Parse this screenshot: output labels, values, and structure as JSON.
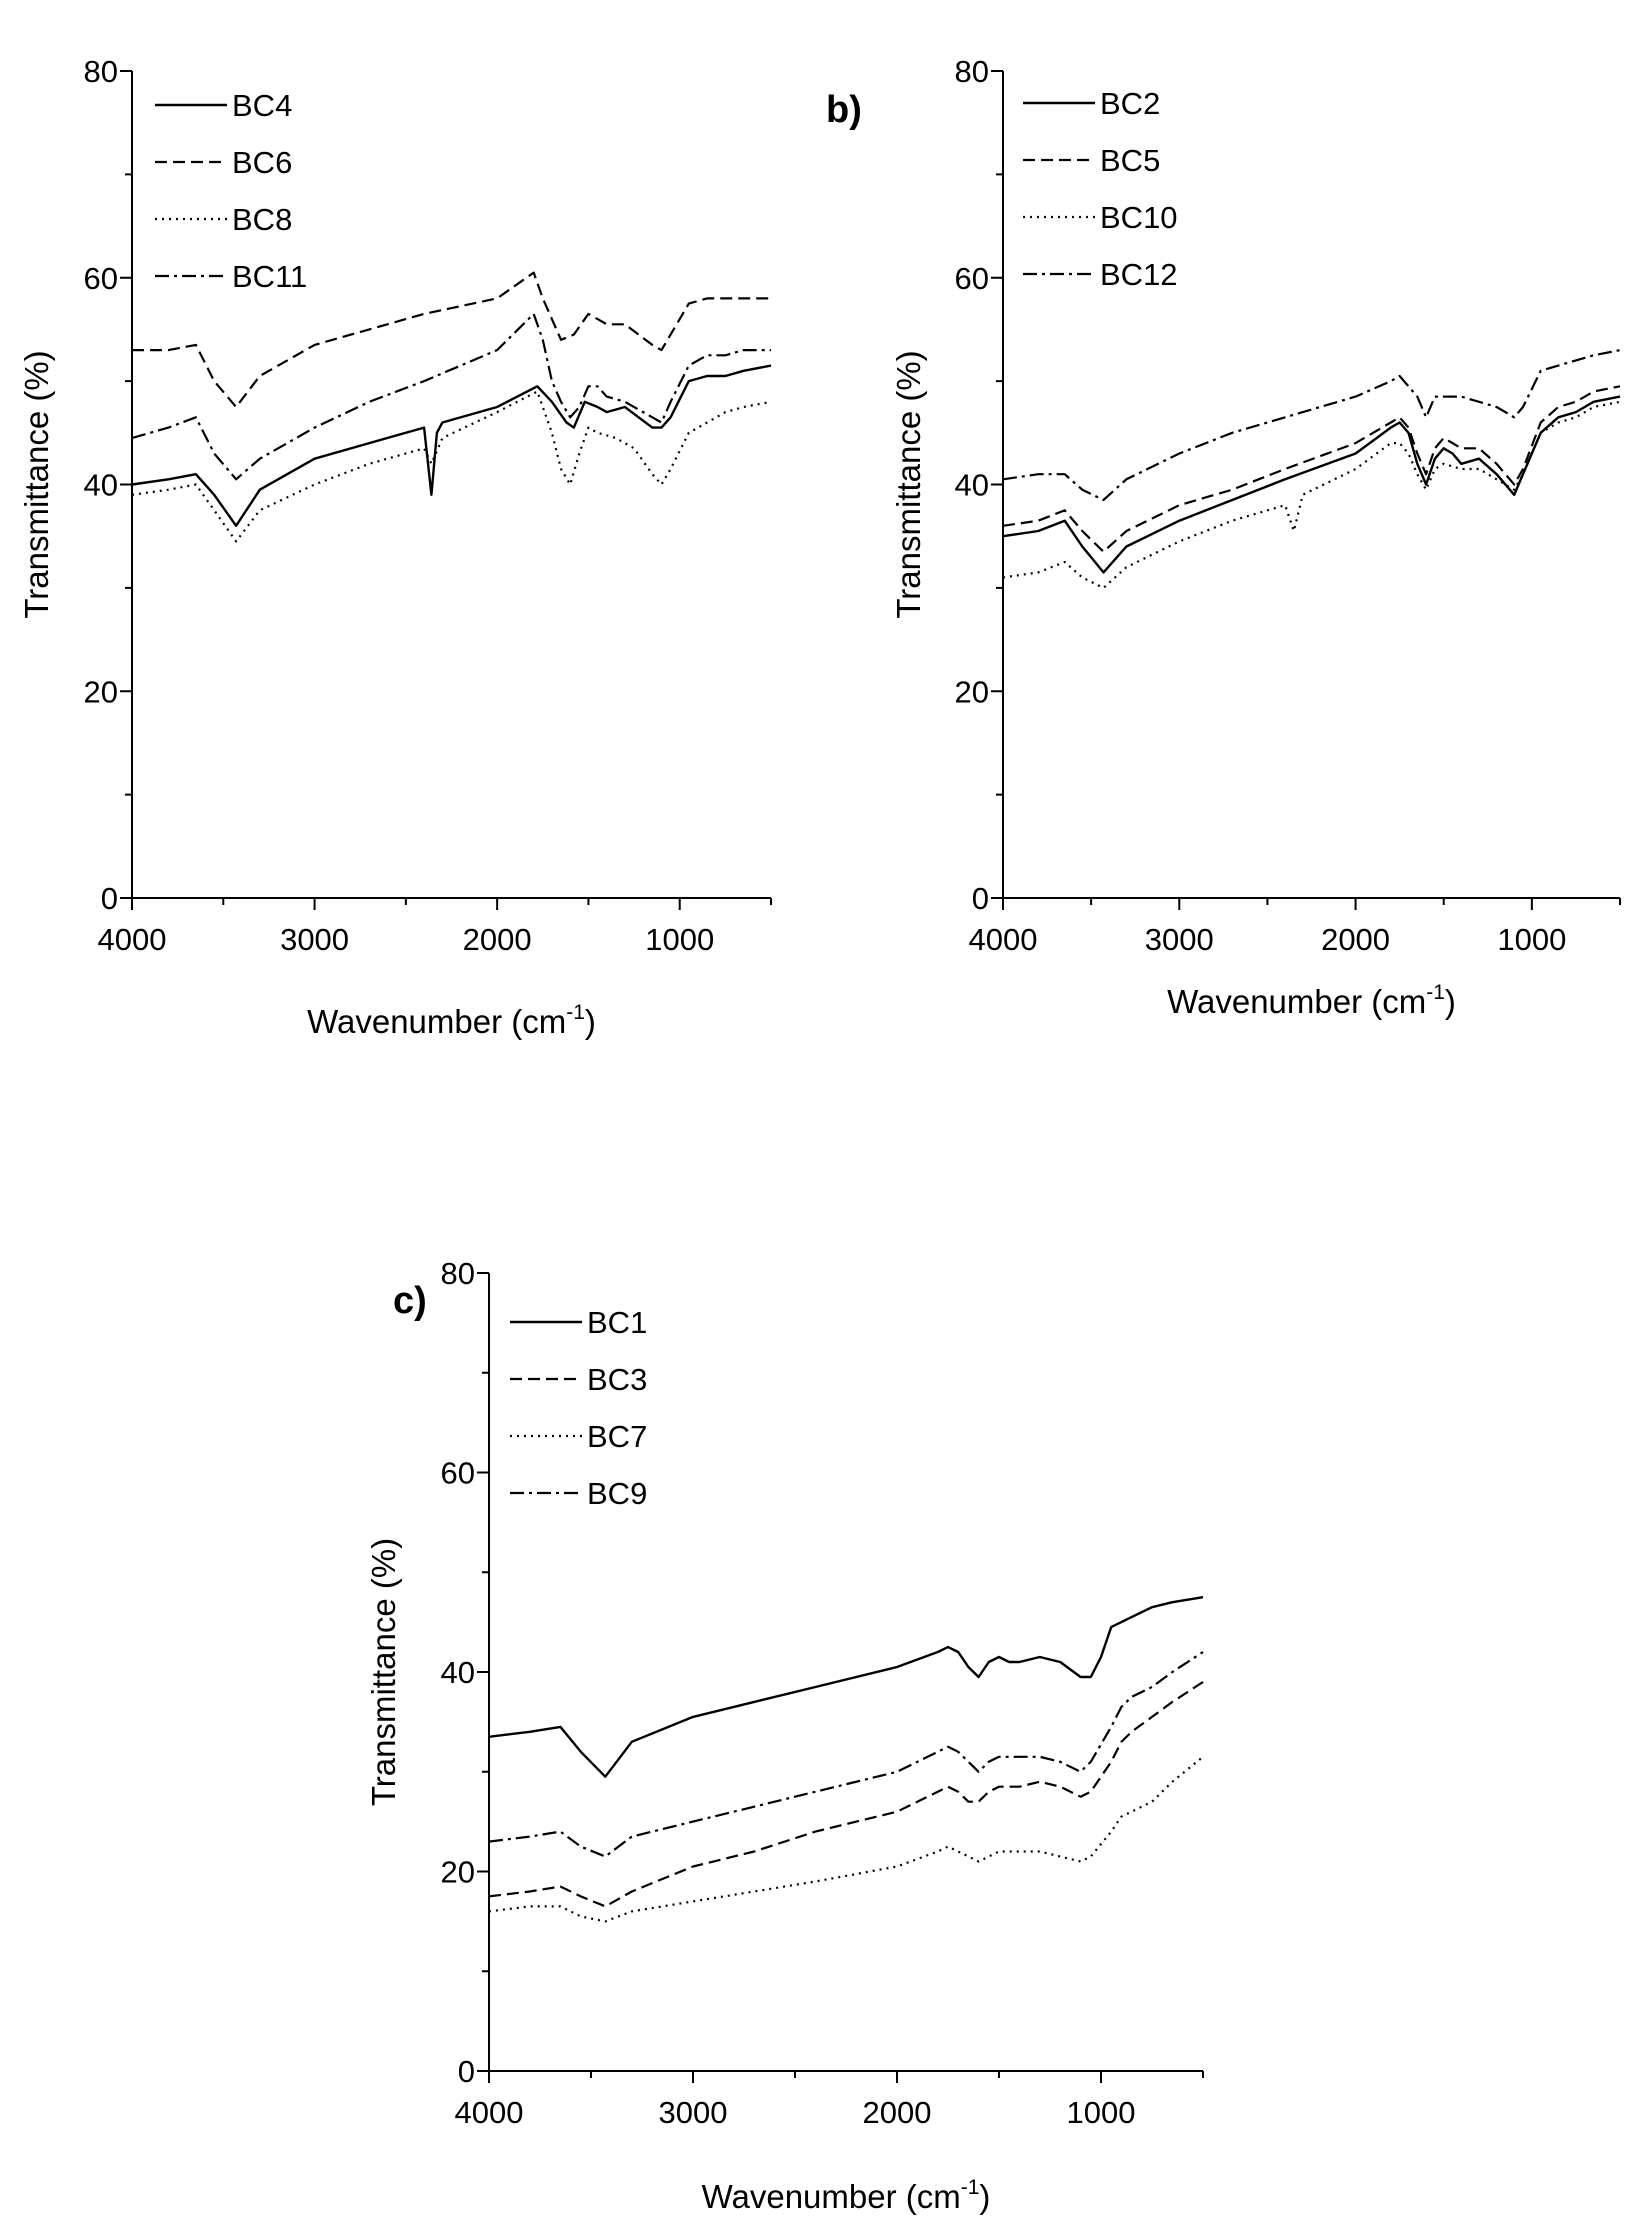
{
  "chart_data": [
    {
      "type": "line",
      "panel_label": "",
      "xlabel": "Wavenumber (cm",
      "xlabel_sup": "-1",
      "xlabel_end": ")",
      "ylabel": "Transmittance (%)",
      "xlim": [
        4000,
        500
      ],
      "ylim": [
        0,
        80
      ],
      "xticks": [
        "4000",
        "3000",
        "2000",
        "1000"
      ],
      "yticks": [
        "0",
        "20",
        "40",
        "60",
        "80"
      ],
      "legend_position": "top-left",
      "series": [
        {
          "name": "BC4",
          "style": "solid",
          "x": [
            4000,
            3800,
            3650,
            3550,
            3430,
            3300,
            3000,
            2700,
            2400,
            2360,
            2330,
            2300,
            2000,
            1780,
            1700,
            1620,
            1580,
            1520,
            1450,
            1400,
            1300,
            1150,
            1100,
            1050,
            950,
            850,
            800,
            750,
            650,
            500
          ],
          "y": [
            40,
            40.5,
            41,
            39,
            36,
            39.5,
            42.5,
            44,
            45.5,
            39,
            45,
            46,
            47.5,
            49.5,
            48,
            46,
            45.5,
            48,
            47.5,
            47,
            47.5,
            45.5,
            45.5,
            46.5,
            50,
            50.5,
            50.5,
            50.5,
            51,
            51.5
          ]
        },
        {
          "name": "BC6",
          "style": "dashed",
          "x": [
            4000,
            3800,
            3650,
            3550,
            3430,
            3300,
            3000,
            2700,
            2400,
            2000,
            1800,
            1750,
            1650,
            1580,
            1500,
            1450,
            1400,
            1300,
            1150,
            1100,
            1050,
            950,
            850,
            750,
            650,
            500
          ],
          "y": [
            53,
            53,
            53.5,
            50,
            47.5,
            50.5,
            53.5,
            55,
            56.5,
            58,
            60.5,
            58,
            54,
            54.5,
            56.5,
            56,
            55.5,
            55.5,
            53.5,
            53,
            54.5,
            57.5,
            58,
            58,
            58,
            58
          ]
        },
        {
          "name": "BC8",
          "style": "dotted",
          "x": [
            4000,
            3800,
            3650,
            3550,
            3430,
            3300,
            3000,
            2700,
            2400,
            2360,
            2300,
            2000,
            1780,
            1700,
            1650,
            1600,
            1550,
            1500,
            1450,
            1350,
            1250,
            1150,
            1100,
            1050,
            950,
            850,
            750,
            650,
            500
          ],
          "y": [
            39,
            39.5,
            40,
            37.5,
            34.5,
            37.5,
            40,
            42,
            43.5,
            42,
            44.5,
            47,
            49,
            45,
            41.5,
            40,
            43,
            45.5,
            45,
            44.5,
            43.5,
            41,
            40,
            41.5,
            45,
            46,
            47,
            47.5,
            48
          ]
        },
        {
          "name": "BC11",
          "style": "dashdot",
          "x": [
            4000,
            3800,
            3650,
            3550,
            3430,
            3300,
            3000,
            2700,
            2400,
            2000,
            1800,
            1750,
            1700,
            1650,
            1600,
            1550,
            1500,
            1450,
            1400,
            1300,
            1150,
            1100,
            1050,
            950,
            850,
            750,
            650,
            500
          ],
          "y": [
            44.5,
            45.5,
            46.5,
            43,
            40.5,
            42.5,
            45.5,
            48,
            50,
            53,
            56.5,
            54,
            50,
            48,
            46.5,
            47.5,
            49.5,
            49.5,
            48.5,
            48,
            46.5,
            46,
            48,
            51.5,
            52.5,
            52.5,
            53,
            53
          ]
        }
      ]
    },
    {
      "type": "line",
      "panel_label": "b)",
      "xlabel": "Wavenumber (cm",
      "xlabel_sup": "-1",
      "xlabel_end": ")",
      "ylabel": "Transmittance (%)",
      "xlim": [
        4000,
        500
      ],
      "ylim": [
        0,
        80
      ],
      "xticks": [
        "4000",
        "3000",
        "2000",
        "1000"
      ],
      "yticks": [
        "0",
        "20",
        "40",
        "60",
        "80"
      ],
      "legend_position": "top-left",
      "series": [
        {
          "name": "BC2",
          "style": "solid",
          "x": [
            4000,
            3800,
            3650,
            3550,
            3430,
            3300,
            3000,
            2700,
            2400,
            2000,
            1800,
            1750,
            1700,
            1650,
            1600,
            1550,
            1500,
            1450,
            1400,
            1300,
            1200,
            1100,
            1050,
            950,
            850,
            750,
            650,
            500
          ],
          "y": [
            35,
            35.5,
            36.5,
            34,
            31.5,
            34,
            36.5,
            38.5,
            40.5,
            43,
            45.5,
            46,
            45,
            42,
            40,
            42.5,
            43.5,
            43,
            42,
            42.5,
            41,
            39,
            41,
            45,
            46.5,
            47,
            48,
            48.5
          ]
        },
        {
          "name": "BC5",
          "style": "dashed",
          "x": [
            4000,
            3800,
            3650,
            3550,
            3430,
            3300,
            3000,
            2700,
            2400,
            2000,
            1800,
            1750,
            1700,
            1650,
            1600,
            1550,
            1500,
            1450,
            1400,
            1300,
            1200,
            1100,
            1050,
            950,
            850,
            750,
            650,
            500
          ],
          "y": [
            36,
            36.5,
            37.5,
            35.5,
            33.5,
            35.5,
            38,
            39.5,
            41.5,
            44,
            46,
            46.5,
            45.5,
            43,
            41,
            43.5,
            44.5,
            44,
            43.5,
            43.5,
            42,
            40,
            41.5,
            46,
            47.5,
            48,
            49,
            49.5
          ]
        },
        {
          "name": "BC10",
          "style": "dotted",
          "x": [
            4000,
            3800,
            3650,
            3550,
            3430,
            3300,
            3000,
            2700,
            2400,
            2350,
            2300,
            2000,
            1800,
            1750,
            1700,
            1650,
            1600,
            1550,
            1500,
            1400,
            1300,
            1200,
            1100,
            1050,
            950,
            850,
            750,
            650,
            500
          ],
          "y": [
            31,
            31.5,
            32.5,
            31,
            30,
            32,
            34.5,
            36.5,
            38,
            35.5,
            39,
            41.5,
            44,
            44,
            43,
            41,
            39.5,
            41.5,
            42,
            41.5,
            41.5,
            40.5,
            39.5,
            41,
            45,
            46,
            46.5,
            47.5,
            48
          ]
        },
        {
          "name": "BC12",
          "style": "dashdot",
          "x": [
            4000,
            3800,
            3650,
            3550,
            3430,
            3300,
            3000,
            2700,
            2400,
            2000,
            1800,
            1750,
            1700,
            1650,
            1600,
            1550,
            1500,
            1400,
            1300,
            1200,
            1100,
            1050,
            950,
            850,
            750,
            650,
            500
          ],
          "y": [
            40.5,
            41,
            41,
            39.5,
            38.5,
            40.5,
            43,
            45,
            46.5,
            48.5,
            50,
            50.5,
            49.5,
            48.5,
            46.5,
            48.5,
            48.5,
            48.5,
            48,
            47.5,
            46.5,
            47.5,
            51,
            51.5,
            52,
            52.5,
            53
          ]
        }
      ]
    },
    {
      "type": "line",
      "panel_label": "c)",
      "xlabel": "Wavenumber (cm",
      "xlabel_sup": "-1",
      "xlabel_end": ")",
      "ylabel": "Transmittance (%)",
      "xlim": [
        4000,
        500
      ],
      "ylim": [
        0,
        80
      ],
      "xticks": [
        "4000",
        "3000",
        "2000",
        "1000"
      ],
      "yticks": [
        "0",
        "20",
        "40",
        "60",
        "80"
      ],
      "legend_position": "top-left",
      "series": [
        {
          "name": "BC1",
          "style": "solid",
          "x": [
            4000,
            3800,
            3650,
            3550,
            3430,
            3300,
            3000,
            2700,
            2400,
            2000,
            1800,
            1750,
            1700,
            1650,
            1600,
            1550,
            1500,
            1450,
            1400,
            1300,
            1200,
            1100,
            1050,
            1000,
            950,
            900,
            850,
            750,
            650,
            500
          ],
          "y": [
            33.5,
            34,
            34.5,
            32,
            29.5,
            33,
            35.5,
            37,
            38.5,
            40.5,
            42,
            42.5,
            42,
            40.5,
            39.5,
            41,
            41.5,
            41,
            41,
            41.5,
            41,
            39.5,
            39.5,
            41.5,
            44.5,
            45,
            45.5,
            46.5,
            47,
            47.5
          ]
        },
        {
          "name": "BC3",
          "style": "dashed",
          "x": [
            4000,
            3800,
            3650,
            3550,
            3430,
            3300,
            3000,
            2700,
            2400,
            2000,
            1800,
            1750,
            1700,
            1650,
            1600,
            1550,
            1500,
            1400,
            1300,
            1200,
            1100,
            1050,
            950,
            900,
            850,
            750,
            650,
            500
          ],
          "y": [
            17.5,
            18,
            18.5,
            17.5,
            16.5,
            18,
            20.5,
            22,
            24,
            26,
            28,
            28.5,
            28,
            27,
            27,
            28,
            28.5,
            28.5,
            29,
            28.5,
            27.5,
            28,
            31,
            33,
            34,
            35.5,
            37,
            39
          ]
        },
        {
          "name": "BC7",
          "style": "dotted",
          "x": [
            4000,
            3800,
            3650,
            3550,
            3430,
            3300,
            3000,
            2700,
            2400,
            2000,
            1800,
            1750,
            1700,
            1650,
            1600,
            1550,
            1500,
            1400,
            1300,
            1200,
            1100,
            1050,
            950,
            900,
            850,
            750,
            650,
            500
          ],
          "y": [
            16,
            16.5,
            16.5,
            15.5,
            15,
            16,
            17,
            18,
            19,
            20.5,
            22,
            22.5,
            22,
            21.5,
            21,
            21.5,
            22,
            22,
            22,
            21.5,
            21,
            21.5,
            24,
            25.5,
            26,
            27,
            29,
            31.5
          ]
        },
        {
          "name": "BC9",
          "style": "dashdot",
          "x": [
            4000,
            3800,
            3650,
            3550,
            3430,
            3300,
            3000,
            2700,
            2400,
            2000,
            1800,
            1750,
            1700,
            1650,
            1600,
            1550,
            1500,
            1400,
            1300,
            1200,
            1100,
            1050,
            950,
            900,
            850,
            750,
            650,
            500
          ],
          "y": [
            23,
            23.5,
            24,
            22.5,
            21.5,
            23.5,
            25,
            26.5,
            28,
            30,
            32,
            32.5,
            32,
            31,
            30,
            31,
            31.5,
            31.5,
            31.5,
            31,
            30,
            31,
            34.5,
            36.5,
            37.5,
            38.5,
            40,
            42
          ]
        }
      ]
    }
  ]
}
